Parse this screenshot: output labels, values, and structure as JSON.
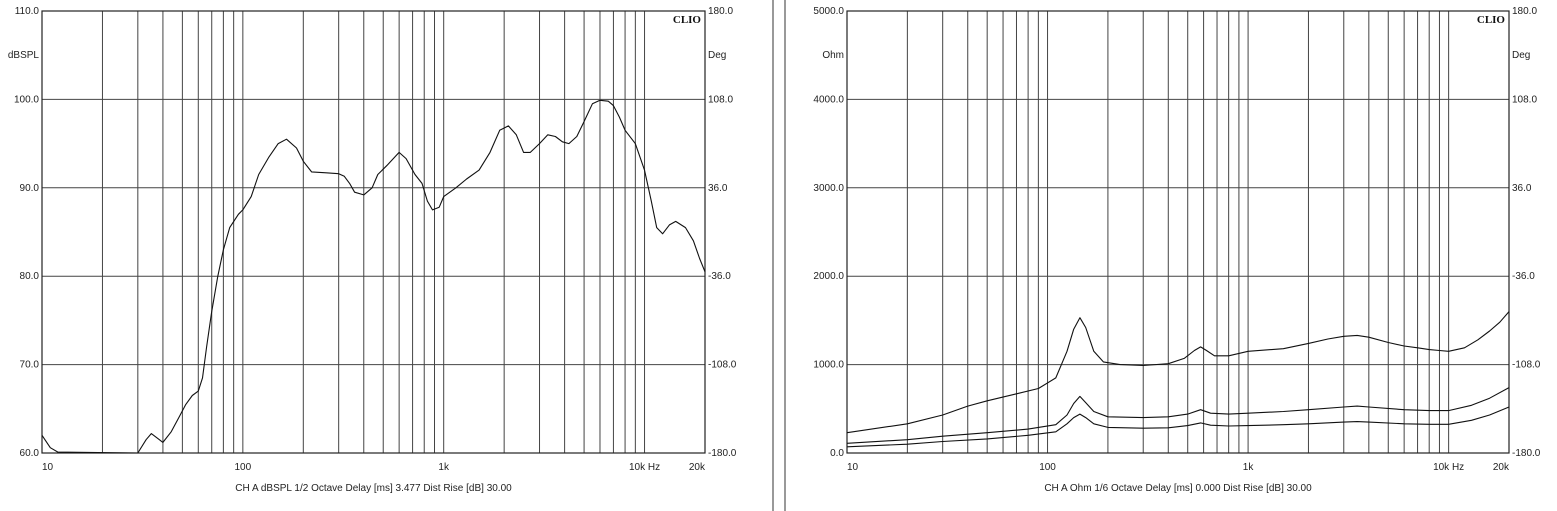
{
  "chart_data": [
    {
      "type": "line",
      "brand": "CLIO",
      "x_scale": "log",
      "xlim": [
        10,
        20000
      ],
      "ylim": [
        60,
        110
      ],
      "y2lim": [
        -180,
        180
      ],
      "grid": true,
      "x_tick_values": [
        20,
        30,
        40,
        50,
        60,
        70,
        80,
        90,
        100,
        200,
        300,
        400,
        500,
        600,
        700,
        800,
        900,
        1000,
        2000,
        3000,
        4000,
        5000,
        6000,
        7000,
        8000,
        9000,
        10000,
        20000
      ],
      "x_tick_labels": [
        {
          "value": 10,
          "label": "10"
        },
        {
          "value": 100,
          "label": "100"
        },
        {
          "value": 1000,
          "label": "1k"
        },
        {
          "value": 10000,
          "label": "10k  Hz"
        },
        {
          "value": 20000,
          "label": "20k"
        }
      ],
      "y_ticks": [
        {
          "value": 60,
          "label": "60.0"
        },
        {
          "value": 70,
          "label": "70.0"
        },
        {
          "value": 80,
          "label": "80.0"
        },
        {
          "value": 90,
          "label": "90.0"
        },
        {
          "value": 100,
          "label": "100.0"
        },
        {
          "value": 110,
          "label": "110.0"
        }
      ],
      "y2_ticks": [
        {
          "value": -180,
          "label": "-180.0"
        },
        {
          "value": -108,
          "label": "-108.0"
        },
        {
          "value": -36,
          "label": "-36.0"
        },
        {
          "value": 36,
          "label": "36.0"
        },
        {
          "value": 108,
          "label": "108.0"
        },
        {
          "value": 180,
          "label": "180.0"
        }
      ],
      "ylabel": "dBSPL",
      "y2label": "Deg",
      "footer": "CH A   dBSPL   1/2 Octave   Delay [ms] 3.477   Dist Rise [dB] 30.00",
      "series": [
        {
          "points": [
            [
              10,
              62
            ],
            [
              11,
              60.6
            ],
            [
              12,
              60.1
            ],
            [
              30,
              60.0
            ],
            [
              33,
              61.5
            ],
            [
              35,
              62.2
            ],
            [
              38,
              61.6
            ],
            [
              40,
              61.2
            ],
            [
              44,
              62.4
            ],
            [
              48,
              64.0
            ],
            [
              52,
              65.5
            ],
            [
              56,
              66.5
            ],
            [
              60,
              67.0
            ],
            [
              63,
              68.5
            ],
            [
              66,
              72.0
            ],
            [
              70,
              76.0
            ],
            [
              75,
              80.0
            ],
            [
              80,
              83.0
            ],
            [
              86,
              85.5
            ],
            [
              95,
              87.0
            ],
            [
              100,
              87.5
            ],
            [
              110,
              89.0
            ],
            [
              120,
              91.5
            ],
            [
              135,
              93.5
            ],
            [
              150,
              95.0
            ],
            [
              165,
              95.5
            ],
            [
              185,
              94.5
            ],
            [
              200,
              93.0
            ],
            [
              220,
              91.8
            ],
            [
              260,
              91.7
            ],
            [
              300,
              91.6
            ],
            [
              320,
              91.3
            ],
            [
              340,
              90.5
            ],
            [
              360,
              89.5
            ],
            [
              400,
              89.2
            ],
            [
              440,
              90.0
            ],
            [
              470,
              91.5
            ],
            [
              520,
              92.5
            ],
            [
              600,
              94.0
            ],
            [
              650,
              93.3
            ],
            [
              720,
              91.5
            ],
            [
              780,
              90.5
            ],
            [
              830,
              88.5
            ],
            [
              880,
              87.5
            ],
            [
              950,
              87.8
            ],
            [
              1000,
              89.0
            ],
            [
              1150,
              90.0
            ],
            [
              1300,
              91.0
            ],
            [
              1500,
              92.0
            ],
            [
              1700,
              94.0
            ],
            [
              1900,
              96.5
            ],
            [
              2100,
              97.0
            ],
            [
              2300,
              96.0
            ],
            [
              2500,
              94.0
            ],
            [
              2700,
              94.0
            ],
            [
              3000,
              95.0
            ],
            [
              3300,
              96.0
            ],
            [
              3600,
              95.8
            ],
            [
              3900,
              95.2
            ],
            [
              4200,
              95.0
            ],
            [
              4600,
              95.8
            ],
            [
              5000,
              97.5
            ],
            [
              5500,
              99.5
            ],
            [
              6000,
              99.9
            ],
            [
              6600,
              99.8
            ],
            [
              7000,
              99.3
            ],
            [
              7500,
              98.0
            ],
            [
              8000,
              96.5
            ],
            [
              9000,
              95.0
            ],
            [
              10000,
              92.0
            ],
            [
              10800,
              88.5
            ],
            [
              11500,
              85.5
            ],
            [
              12300,
              84.8
            ],
            [
              13300,
              85.8
            ],
            [
              14300,
              86.2
            ],
            [
              16000,
              85.5
            ],
            [
              17500,
              84.0
            ],
            [
              18800,
              82.0
            ],
            [
              20000,
              80.5
            ]
          ]
        }
      ]
    },
    {
      "type": "line",
      "brand": "CLIO",
      "x_scale": "log",
      "xlim": [
        10,
        20000
      ],
      "ylim": [
        0,
        5000
      ],
      "y2lim": [
        -180,
        180
      ],
      "grid": true,
      "x_tick_values": [
        20,
        30,
        40,
        50,
        60,
        70,
        80,
        90,
        100,
        200,
        300,
        400,
        500,
        600,
        700,
        800,
        900,
        1000,
        2000,
        3000,
        4000,
        5000,
        6000,
        7000,
        8000,
        9000,
        10000,
        20000
      ],
      "x_tick_labels": [
        {
          "value": 10,
          "label": "10"
        },
        {
          "value": 100,
          "label": "100"
        },
        {
          "value": 1000,
          "label": "1k"
        },
        {
          "value": 10000,
          "label": "10k  Hz"
        },
        {
          "value": 20000,
          "label": "20k"
        }
      ],
      "y_ticks": [
        {
          "value": 0,
          "label": "0.0"
        },
        {
          "value": 1000,
          "label": "1000.0"
        },
        {
          "value": 2000,
          "label": "2000.0"
        },
        {
          "value": 3000,
          "label": "3000.0"
        },
        {
          "value": 4000,
          "label": "4000.0"
        },
        {
          "value": 5000,
          "label": "5000.0"
        }
      ],
      "y2_ticks": [
        {
          "value": -180,
          "label": "-180.0"
        },
        {
          "value": -108,
          "label": "-108.0"
        },
        {
          "value": -36,
          "label": "-36.0"
        },
        {
          "value": 36,
          "label": "36.0"
        },
        {
          "value": 108,
          "label": "108.0"
        },
        {
          "value": 180,
          "label": "180.0"
        }
      ],
      "ylabel": "Ohm",
      "y2label": "Deg",
      "footer": "CH A   Ohm   1/6 Octave   Delay [ms] 0.000   Dist Rise [dB] 30.00",
      "series": [
        {
          "points": [
            [
              10,
              230
            ],
            [
              20,
              330
            ],
            [
              30,
              430
            ],
            [
              40,
              530
            ],
            [
              50,
              590
            ],
            [
              70,
              670
            ],
            [
              90,
              730
            ],
            [
              110,
              850
            ],
            [
              125,
              1150
            ],
            [
              135,
              1400
            ],
            [
              145,
              1530
            ],
            [
              155,
              1420
            ],
            [
              170,
              1150
            ],
            [
              190,
              1030
            ],
            [
              230,
              1000
            ],
            [
              300,
              990
            ],
            [
              400,
              1010
            ],
            [
              480,
              1070
            ],
            [
              540,
              1160
            ],
            [
              580,
              1200
            ],
            [
              620,
              1160
            ],
            [
              680,
              1100
            ],
            [
              800,
              1100
            ],
            [
              1000,
              1150
            ],
            [
              1500,
              1180
            ],
            [
              2000,
              1240
            ],
            [
              2500,
              1290
            ],
            [
              3000,
              1320
            ],
            [
              3500,
              1330
            ],
            [
              4000,
              1310
            ],
            [
              5000,
              1250
            ],
            [
              6000,
              1210
            ],
            [
              7000,
              1190
            ],
            [
              8000,
              1170
            ],
            [
              9000,
              1160
            ],
            [
              10000,
              1150
            ],
            [
              12000,
              1190
            ],
            [
              14000,
              1280
            ],
            [
              16000,
              1380
            ],
            [
              18000,
              1480
            ],
            [
              20000,
              1600
            ]
          ]
        },
        {
          "points": [
            [
              10,
              110
            ],
            [
              20,
              150
            ],
            [
              30,
              190
            ],
            [
              50,
              230
            ],
            [
              80,
              270
            ],
            [
              110,
              320
            ],
            [
              125,
              430
            ],
            [
              135,
              560
            ],
            [
              145,
              640
            ],
            [
              155,
              570
            ],
            [
              170,
              470
            ],
            [
              200,
              410
            ],
            [
              300,
              400
            ],
            [
              400,
              410
            ],
            [
              500,
              440
            ],
            [
              580,
              490
            ],
            [
              650,
              450
            ],
            [
              800,
              440
            ],
            [
              1000,
              450
            ],
            [
              1500,
              470
            ],
            [
              2000,
              490
            ],
            [
              3000,
              520
            ],
            [
              3500,
              530
            ],
            [
              4000,
              520
            ],
            [
              6000,
              490
            ],
            [
              8000,
              480
            ],
            [
              10000,
              480
            ],
            [
              13000,
              540
            ],
            [
              16000,
              620
            ],
            [
              20000,
              740
            ]
          ]
        },
        {
          "points": [
            [
              10,
              70
            ],
            [
              20,
              100
            ],
            [
              30,
              130
            ],
            [
              50,
              160
            ],
            [
              80,
              200
            ],
            [
              110,
              240
            ],
            [
              125,
              330
            ],
            [
              135,
              400
            ],
            [
              145,
              440
            ],
            [
              155,
              400
            ],
            [
              170,
              330
            ],
            [
              200,
              290
            ],
            [
              300,
              280
            ],
            [
              400,
              285
            ],
            [
              500,
              310
            ],
            [
              580,
              340
            ],
            [
              650,
              315
            ],
            [
              800,
              305
            ],
            [
              1000,
              310
            ],
            [
              1500,
              320
            ],
            [
              2000,
              330
            ],
            [
              3000,
              350
            ],
            [
              3500,
              355
            ],
            [
              4000,
              350
            ],
            [
              6000,
              330
            ],
            [
              8000,
              325
            ],
            [
              10000,
              325
            ],
            [
              13000,
              370
            ],
            [
              16000,
              430
            ],
            [
              20000,
              520
            ]
          ]
        }
      ]
    }
  ]
}
